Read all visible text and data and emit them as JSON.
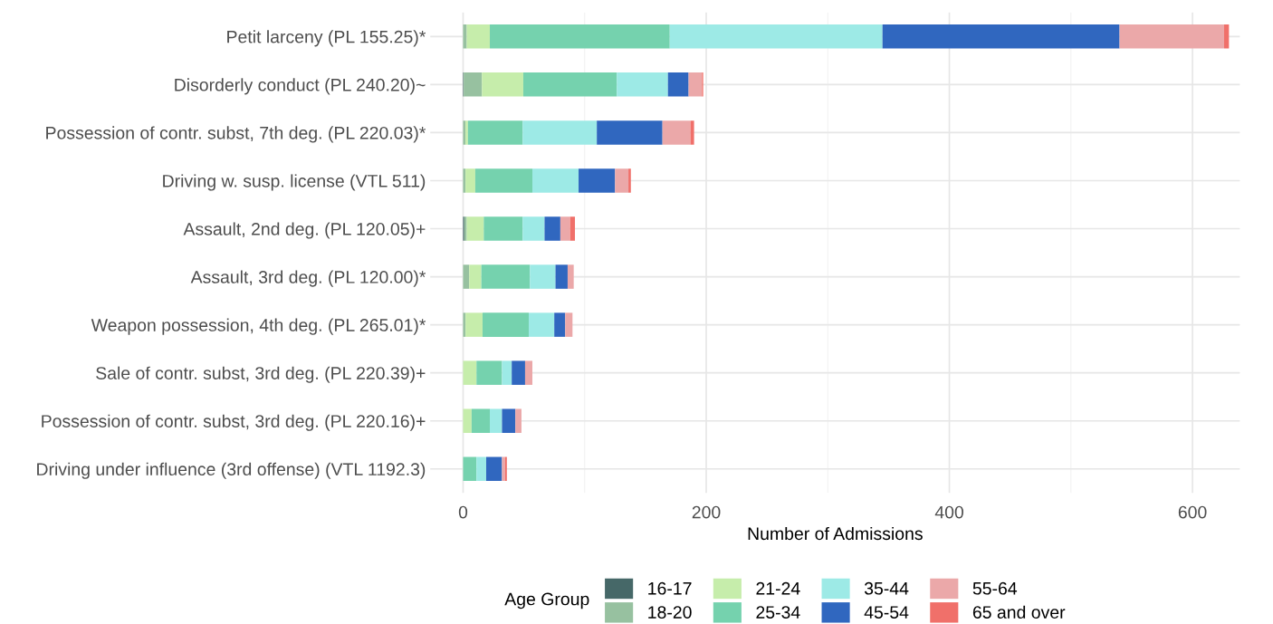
{
  "chart_data": {
    "type": "bar",
    "orientation": "horizontal",
    "stacked": true,
    "categories": [
      "Petit larceny (PL 155.25)*",
      "Disorderly conduct (PL 240.20)~",
      "Possession of contr. subst, 7th deg. (PL 220.03)*",
      "Driving w. susp. license (VTL 511)",
      "Assault, 2nd deg. (PL 120.05)+",
      "Assault, 3rd deg. (PL 120.00)*",
      "Weapon possession, 4th deg. (PL 265.01)*",
      "Sale of contr. subst, 3rd deg. (PL 220.39)+",
      "Possession of contr. subst, 3rd deg. (PL 220.16)+",
      "Driving under influence (3rd offense) (VTL 1192.3)"
    ],
    "series": [
      {
        "name": "16-17",
        "color": "#466868",
        "values": [
          0,
          0.5,
          0,
          0,
          1,
          0,
          0,
          0,
          0,
          0
        ]
      },
      {
        "name": "18-20",
        "color": "#97c1a0",
        "values": [
          3,
          15,
          2,
          2,
          2,
          5,
          2,
          0,
          0,
          0
        ]
      },
      {
        "name": "21-24",
        "color": "#c6edab",
        "values": [
          19,
          34,
          2,
          8,
          14,
          10,
          14,
          11,
          7,
          0
        ]
      },
      {
        "name": "25-34",
        "color": "#75d2ae",
        "values": [
          148,
          77,
          45,
          47,
          32,
          40,
          38,
          21,
          15,
          11
        ]
      },
      {
        "name": "35-44",
        "color": "#9deae6",
        "values": [
          175,
          42,
          61,
          38,
          18,
          21,
          21,
          8,
          10,
          8
        ]
      },
      {
        "name": "45-54",
        "color": "#3067bf",
        "values": [
          195,
          17,
          54,
          30,
          13,
          10,
          9,
          11,
          11,
          13
        ]
      },
      {
        "name": "55-64",
        "color": "#eba8a9",
        "values": [
          86,
          11,
          23,
          11,
          8,
          5,
          6,
          6,
          5,
          2.5
        ]
      },
      {
        "name": "65 and over",
        "color": "#f0706a",
        "values": [
          4,
          1,
          3,
          2,
          4,
          0,
          0,
          0,
          0,
          1.5
        ]
      }
    ],
    "xlabel": "Number of Admissions",
    "legend_title": "Age Group",
    "xlim": [
      -27,
      639
    ],
    "xticks": [
      0,
      {
        "value": 100,
        "label": null
      },
      200,
      {
        "value": 300,
        "label": null
      },
      400,
      {
        "value": 500,
        "label": null
      },
      600
    ],
    "grid": true,
    "legend": "bottom"
  }
}
